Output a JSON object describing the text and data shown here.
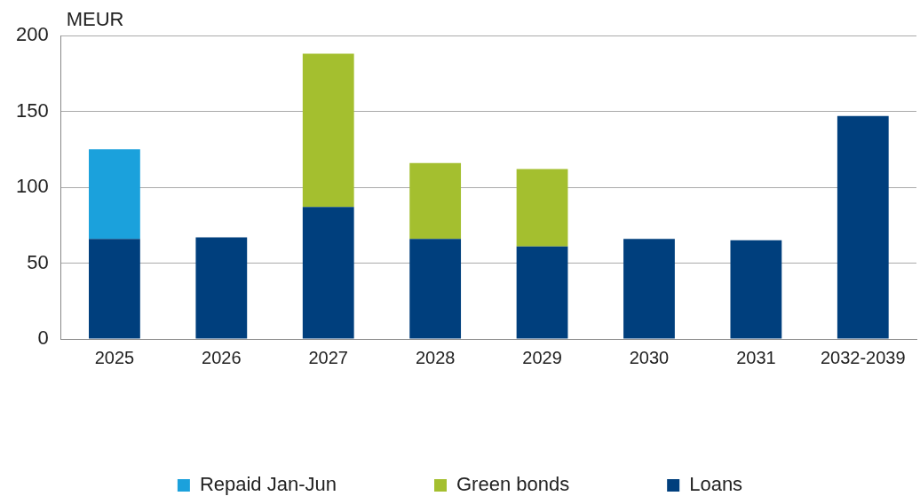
{
  "chart_data": {
    "type": "bar",
    "ylabel": "MEUR",
    "categories": [
      "2025",
      "2026",
      "2027",
      "2028",
      "2029",
      "2030",
      "2031",
      "2032-2039"
    ],
    "series": [
      {
        "name": "Loans",
        "color": "#003f7d",
        "values": [
          66,
          67,
          87,
          66,
          61,
          66,
          65,
          147
        ]
      },
      {
        "name": "Green bonds",
        "color": "#a4bf2f",
        "values": [
          null,
          null,
          101,
          50,
          51,
          null,
          null,
          null
        ]
      },
      {
        "name": "Repaid Jan-Jun",
        "color": "#1ba1dc",
        "values": [
          59,
          null,
          null,
          null,
          null,
          null,
          null,
          null
        ]
      }
    ],
    "stacked": true,
    "ylim": [
      0,
      200
    ],
    "yticks": [
      0,
      50,
      100,
      150,
      200
    ],
    "grid": "y",
    "legend": "bottom"
  }
}
